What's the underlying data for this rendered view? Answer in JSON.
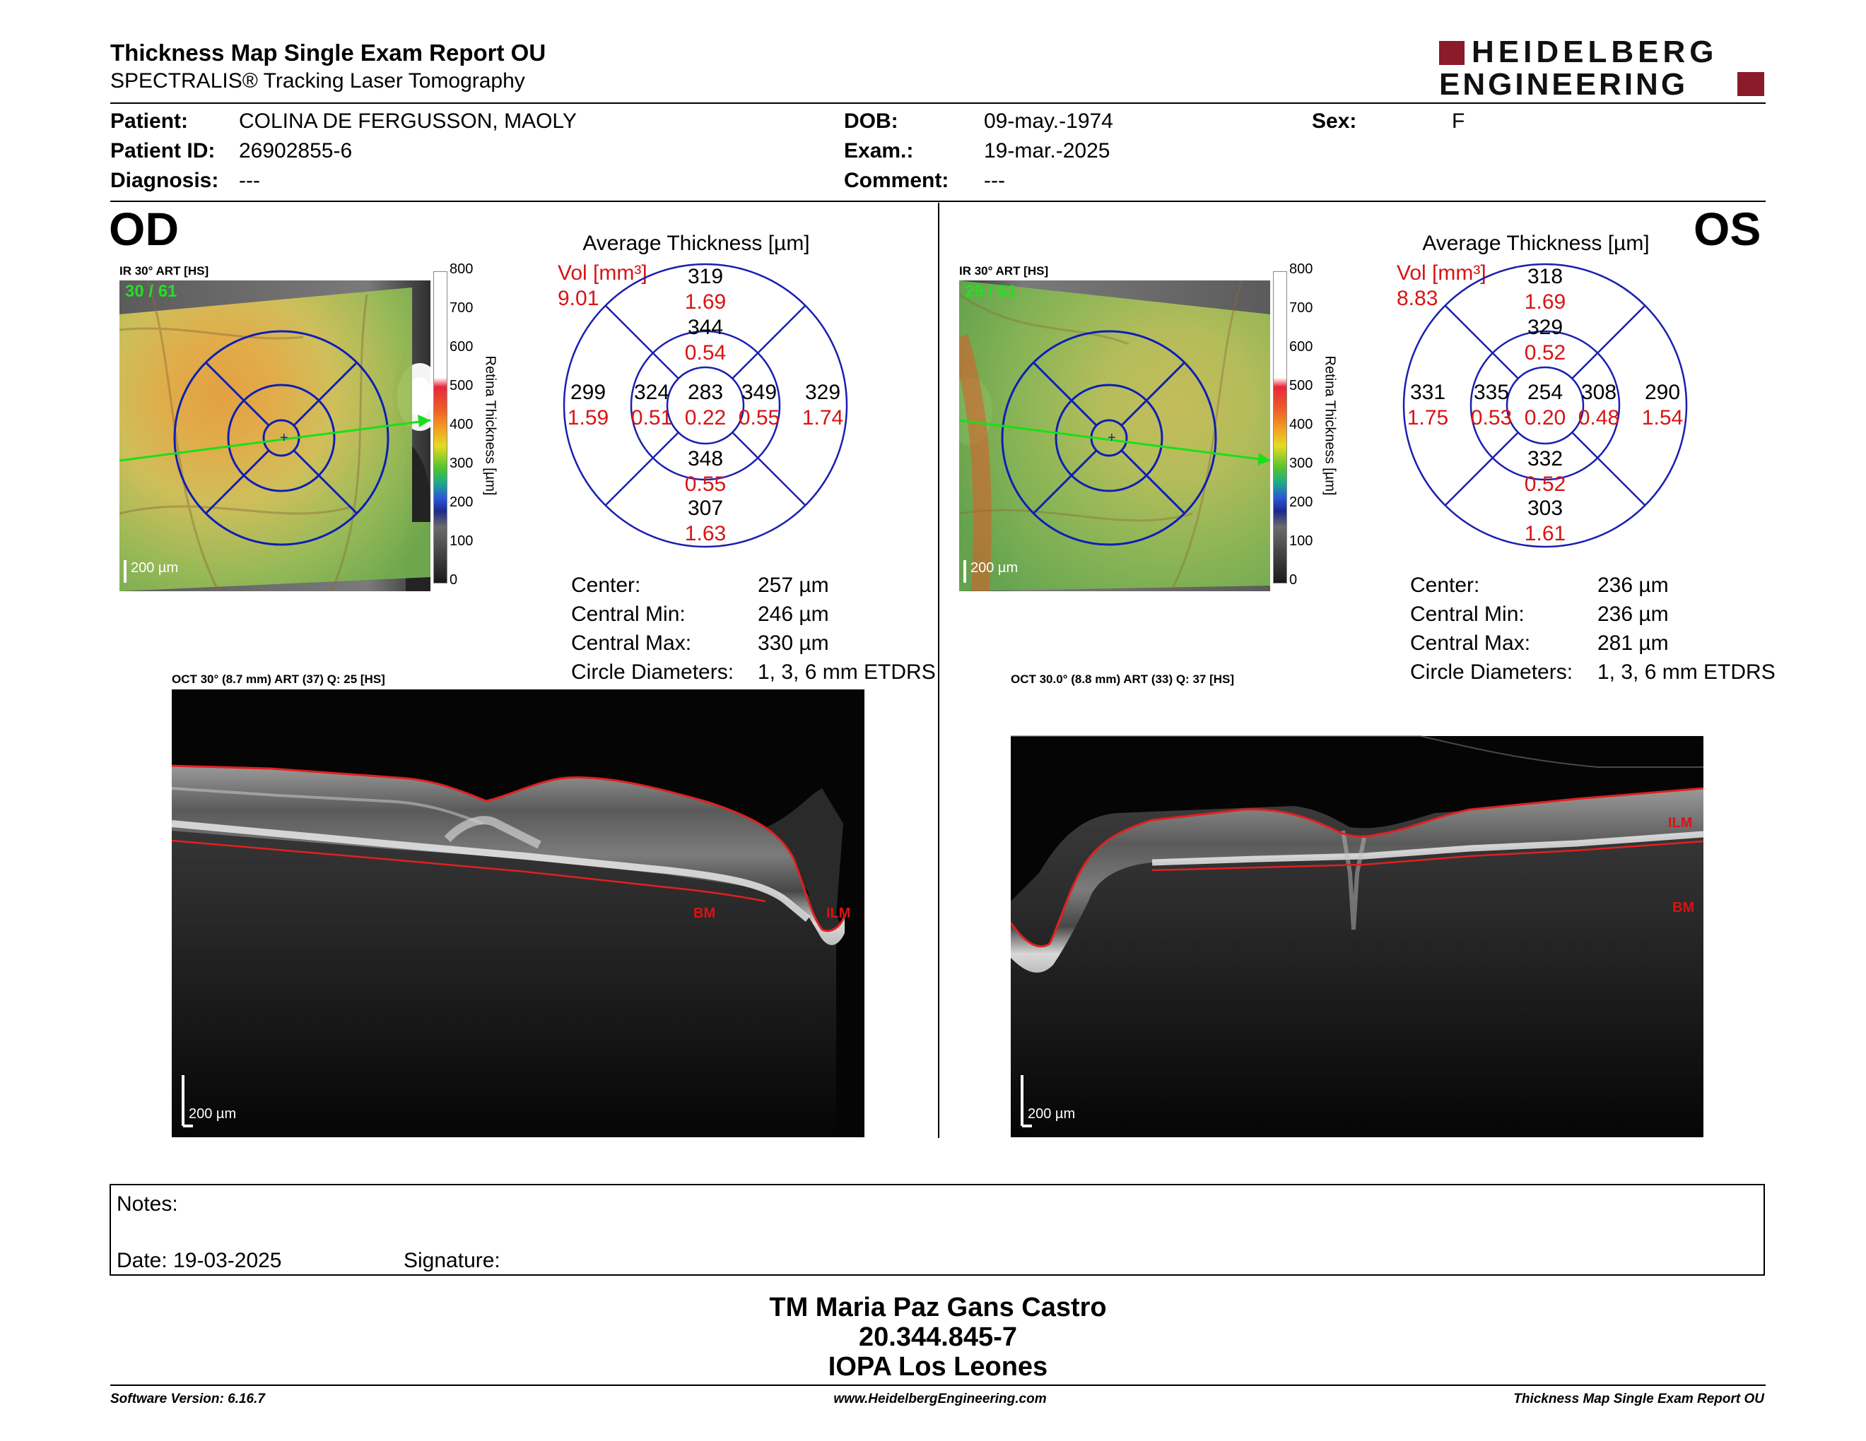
{
  "report": {
    "title": "Thickness Map Single Exam Report OU",
    "subtitle": "SPECTRALIS® Tracking Laser Tomography",
    "logo_line1": "HEIDELBERG",
    "logo_line2": "ENGINEERING",
    "logo_color": "#8b1a2b"
  },
  "patient": {
    "patient_label": "Patient:",
    "patient_value": "COLINA DE FERGUSSON, MAOLY",
    "id_label": "Patient ID:",
    "id_value": "26902855-6",
    "diagnosis_label": "Diagnosis:",
    "diagnosis_value": "---",
    "dob_label": "DOB:",
    "dob_value": "09-may.-1974",
    "exam_label": "Exam.:",
    "exam_value": "19-mar.-2025",
    "comment_label": "Comment:",
    "comment_value": "---",
    "sex_label": "Sex:",
    "sex_value": "F"
  },
  "scale": {
    "ticks": [
      "800",
      "700",
      "600",
      "500",
      "400",
      "300",
      "200",
      "100",
      "0"
    ],
    "label": "Retina Thickness [µm]"
  },
  "od": {
    "eye": "OD",
    "ir_label": "IR 30° ART [HS]",
    "frame": "30 / 61",
    "scale_bar": "200 µm",
    "avg_title": "Average Thickness [µm]",
    "vol_label": "Vol [mm³]",
    "vol_value": "9.01",
    "etdrs": {
      "center": [
        "283",
        "0.22"
      ],
      "inner_sup": [
        "344",
        "0.54"
      ],
      "inner_inf": [
        "348",
        "0.55"
      ],
      "inner_temp": [
        "324",
        "0.51"
      ],
      "inner_nasal": [
        "349",
        "0.55"
      ],
      "outer_sup": [
        "319",
        "1.69"
      ],
      "outer_inf": [
        "307",
        "1.63"
      ],
      "outer_temp": [
        "299",
        "1.59"
      ],
      "outer_nasal": [
        "329",
        "1.74"
      ]
    },
    "stats": [
      {
        "label": "Center:",
        "value": "257 µm"
      },
      {
        "label": "Central Min:",
        "value": "246 µm"
      },
      {
        "label": "Central Max:",
        "value": "330 µm"
      },
      {
        "label": "Circle Diameters:",
        "value": "1, 3, 6 mm ETDRS"
      }
    ],
    "oct_label": "OCT 30° (8.7 mm) ART (37) Q: 25 [HS]",
    "oct_scale": "200 µm",
    "bm": "BM",
    "ilm": "ILM"
  },
  "os": {
    "eye": "OS",
    "ir_label": "IR 30° ART [HS]",
    "frame": "29 / 61",
    "scale_bar": "200 µm",
    "avg_title": "Average Thickness [µm]",
    "vol_label": "Vol [mm³]",
    "vol_value": "8.83",
    "etdrs": {
      "center": [
        "254",
        "0.20"
      ],
      "inner_sup": [
        "329",
        "0.52"
      ],
      "inner_inf": [
        "332",
        "0.52"
      ],
      "inner_temp": [
        "335",
        "0.53"
      ],
      "inner_nasal": [
        "308",
        "0.48"
      ],
      "outer_sup": [
        "318",
        "1.69"
      ],
      "outer_inf": [
        "303",
        "1.61"
      ],
      "outer_temp": [
        "331",
        "1.75"
      ],
      "outer_nasal": [
        "290",
        "1.54"
      ]
    },
    "stats": [
      {
        "label": "Center:",
        "value": "236 µm"
      },
      {
        "label": "Central Min:",
        "value": "236 µm"
      },
      {
        "label": "Central Max:",
        "value": "281 µm"
      },
      {
        "label": "Circle Diameters:",
        "value": "1, 3, 6 mm ETDRS"
      }
    ],
    "oct_label": "OCT 30.0° (8.8 mm) ART (33) Q: 37 [HS]",
    "oct_scale": "200 µm",
    "bm": "BM",
    "ilm": "ILM"
  },
  "notes": {
    "notes_label": "Notes:",
    "date_label": "Date: 19-03-2025",
    "signature_label": "Signature:"
  },
  "signer": {
    "name": "TM Maria Paz Gans Castro",
    "rut": "20.344.845-7",
    "institution": "IOPA Los Leones"
  },
  "footer": {
    "software": "Software Version: 6.16.7",
    "website": "www.HeidelbergEngineering.com",
    "report_name": "Thickness Map Single Exam Report OU"
  }
}
